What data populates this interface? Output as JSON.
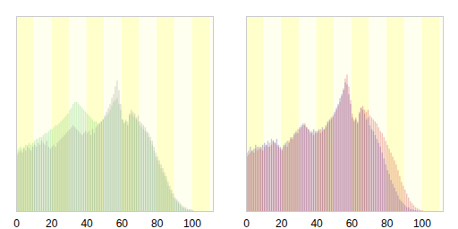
{
  "chart_data": [
    {
      "type": "bar",
      "x": [
        0,
        1,
        2,
        3,
        4,
        5,
        6,
        7,
        8,
        9,
        10,
        11,
        12,
        13,
        14,
        15,
        16,
        17,
        18,
        19,
        20,
        21,
        22,
        23,
        24,
        25,
        26,
        27,
        28,
        29,
        30,
        31,
        32,
        33,
        34,
        35,
        36,
        37,
        38,
        39,
        40,
        41,
        42,
        43,
        44,
        45,
        46,
        47,
        48,
        49,
        50,
        51,
        52,
        53,
        54,
        55,
        56,
        57,
        58,
        59,
        60,
        61,
        62,
        63,
        64,
        65,
        66,
        67,
        68,
        69,
        70,
        71,
        72,
        73,
        74,
        75,
        76,
        77,
        78,
        79,
        80,
        81,
        82,
        83,
        84,
        85,
        86,
        87,
        88,
        89,
        90,
        91,
        92,
        93,
        94,
        95,
        96,
        97,
        98,
        99,
        100
      ],
      "series": [
        {
          "color": "#66cc66",
          "values": [
            31,
            32,
            33,
            32,
            33,
            34,
            34,
            35,
            34,
            35,
            36,
            37,
            37,
            38,
            38,
            39,
            40,
            40,
            41,
            42,
            42,
            43,
            44,
            44,
            45,
            46,
            47,
            48,
            49,
            50,
            52,
            53,
            55,
            56,
            56,
            55,
            54,
            53,
            52,
            51,
            50,
            49,
            48,
            47,
            46,
            46,
            45,
            45,
            46,
            47,
            48,
            49,
            50,
            52,
            54,
            56,
            57,
            58,
            55,
            52,
            47,
            46,
            47,
            46,
            49,
            50,
            49,
            48,
            47,
            46,
            44,
            43,
            42,
            41,
            40,
            38,
            36,
            34,
            31,
            28,
            26,
            24,
            22,
            20,
            18,
            16,
            13,
            11,
            9,
            7,
            6,
            5,
            4,
            3,
            2,
            2,
            1,
            1,
            0.5,
            0.5,
            0.3
          ]
        },
        {
          "color": "#8c8c8c",
          "values": [
            29,
            30,
            31,
            30,
            32,
            31,
            33,
            32,
            31,
            33,
            34,
            33,
            35,
            34,
            36,
            35,
            34,
            36,
            33,
            32,
            33,
            34,
            33,
            35,
            36,
            37,
            38,
            39,
            40,
            41,
            42,
            43,
            44,
            43,
            42,
            41,
            40,
            39,
            40,
            41,
            40,
            41,
            39,
            42,
            40,
            43,
            44,
            45,
            46,
            47,
            49,
            51,
            53,
            55,
            58,
            60,
            64,
            67,
            62,
            55,
            47,
            45,
            46,
            44,
            50,
            52,
            51,
            50,
            48,
            49,
            46,
            45,
            44,
            43,
            41,
            40,
            38,
            36,
            33,
            30,
            28,
            26,
            24,
            22,
            20,
            18,
            15,
            13,
            11,
            9,
            7,
            6,
            5,
            4,
            3,
            2,
            2,
            1,
            1,
            1,
            0.5
          ]
        }
      ],
      "xlim": [
        0,
        112
      ],
      "xticks": [
        0,
        20,
        40,
        60,
        80,
        100
      ],
      "ylim": [
        0,
        100
      ],
      "tick_labels": "x"
    },
    {
      "type": "bar",
      "x": [
        0,
        1,
        2,
        3,
        4,
        5,
        6,
        7,
        8,
        9,
        10,
        11,
        12,
        13,
        14,
        15,
        16,
        17,
        18,
        19,
        20,
        21,
        22,
        23,
        24,
        25,
        26,
        27,
        28,
        29,
        30,
        31,
        32,
        33,
        34,
        35,
        36,
        37,
        38,
        39,
        40,
        41,
        42,
        43,
        44,
        45,
        46,
        47,
        48,
        49,
        50,
        51,
        52,
        53,
        54,
        55,
        56,
        57,
        58,
        59,
        60,
        61,
        62,
        63,
        64,
        65,
        66,
        67,
        68,
        69,
        70,
        71,
        72,
        73,
        74,
        75,
        76,
        77,
        78,
        79,
        80,
        81,
        82,
        83,
        84,
        85,
        86,
        87,
        88,
        89,
        90,
        91,
        92,
        93,
        94,
        95,
        96,
        97,
        98,
        99,
        100
      ],
      "series": [
        {
          "color": "#3333cc",
          "values": [
            30,
            31,
            33,
            31,
            32,
            34,
            33,
            32,
            33,
            34,
            35,
            34,
            36,
            33,
            37,
            36,
            35,
            37,
            34,
            33,
            32,
            34,
            35,
            36,
            35,
            38,
            37,
            40,
            41,
            40,
            43,
            44,
            45,
            44,
            43,
            42,
            41,
            40,
            42,
            41,
            41,
            42,
            40,
            43,
            42,
            44,
            46,
            47,
            48,
            49,
            51,
            53,
            55,
            58,
            60,
            62,
            66,
            65,
            60,
            55,
            48,
            46,
            47,
            45,
            50,
            53,
            52,
            50,
            47,
            48,
            44,
            42,
            41,
            39,
            37,
            35,
            33,
            30,
            27,
            24,
            21,
            19,
            16,
            14,
            12,
            10,
            8,
            6,
            5,
            4,
            3,
            2,
            2,
            1,
            1,
            0.5,
            0.5,
            0.3,
            0.2,
            0.1,
            0.1
          ]
        },
        {
          "color": "#cc3333",
          "values": [
            28,
            29,
            30,
            31,
            30,
            32,
            31,
            33,
            32,
            31,
            33,
            34,
            33,
            35,
            34,
            36,
            35,
            34,
            33,
            32,
            31,
            33,
            34,
            33,
            36,
            37,
            38,
            39,
            40,
            42,
            42,
            43,
            44,
            45,
            43,
            42,
            40,
            41,
            39,
            40,
            40,
            41,
            42,
            41,
            42,
            43,
            45,
            46,
            47,
            48,
            50,
            52,
            54,
            56,
            59,
            63,
            68,
            70,
            64,
            57,
            50,
            47,
            48,
            46,
            51,
            53,
            54,
            52,
            51,
            52,
            49,
            48,
            47,
            46,
            45,
            43,
            41,
            40,
            38,
            36,
            34,
            32,
            30,
            28,
            26,
            24,
            21,
            18,
            15,
            13,
            11,
            9,
            7,
            5,
            4,
            3,
            2,
            1.5,
            1,
            0.5,
            0.3
          ]
        }
      ],
      "xlim": [
        0,
        112
      ],
      "xticks": [
        0,
        20,
        40,
        60,
        80,
        100
      ],
      "ylim": [
        0,
        100
      ],
      "tick_labels": "x"
    }
  ]
}
